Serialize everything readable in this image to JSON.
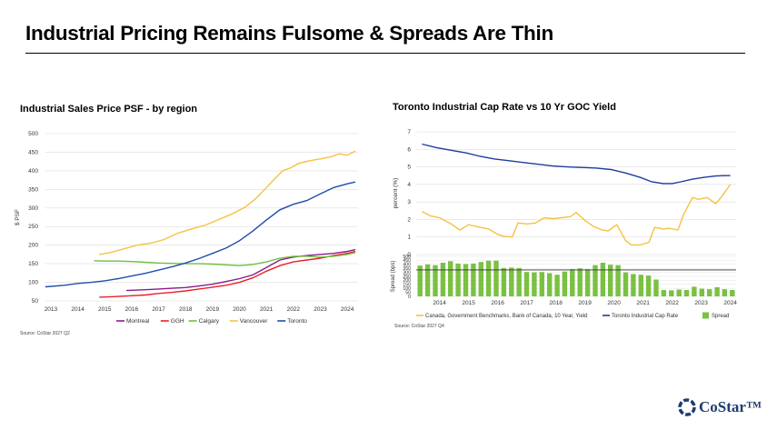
{
  "page": {
    "title": "Industrial Pricing Remains Fulsome & Spreads Are Thin",
    "brand": "CoStar™",
    "colors": {
      "navy": "#1f3c6e",
      "light_blue": "#5b8fd0"
    }
  },
  "chart_data": [
    {
      "type": "line",
      "title": "Industrial Sales Price PSF - by region",
      "ylabel": "$ PSF",
      "xlabel": "",
      "ylim": [
        50,
        500
      ],
      "yticks": [
        50,
        100,
        150,
        200,
        250,
        300,
        350,
        400,
        450,
        500
      ],
      "xlim": [
        2012.8,
        2024.4
      ],
      "xticks": [
        2013,
        2014,
        2015,
        2016,
        2017,
        2018,
        2019,
        2020,
        2021,
        2022,
        2023,
        2024
      ],
      "grid": true,
      "legend": "bottom",
      "source": "Source: CoStar 2027 Q2",
      "series": [
        {
          "name": "Montreal",
          "color": "#8b1a8b",
          "x": [
            2015.8,
            2016.5,
            2017,
            2017.5,
            2018,
            2018.5,
            2019,
            2019.5,
            2020,
            2020.5,
            2021,
            2021.5,
            2022,
            2022.5,
            2023,
            2023.5,
            2024,
            2024.3
          ],
          "values": [
            78,
            80,
            82,
            84,
            86,
            90,
            95,
            102,
            110,
            120,
            140,
            160,
            168,
            172,
            175,
            178,
            183,
            188
          ]
        },
        {
          "name": "GGH",
          "color": "#e8202a",
          "x": [
            2014.8,
            2015.5,
            2016,
            2016.5,
            2017,
            2017.5,
            2018,
            2018.5,
            2019,
            2019.5,
            2020,
            2020.5,
            2021,
            2021.5,
            2022,
            2022.5,
            2023,
            2023.5,
            2024,
            2024.3
          ],
          "values": [
            60,
            62,
            64,
            66,
            70,
            73,
            77,
            82,
            87,
            92,
            100,
            112,
            130,
            145,
            155,
            160,
            165,
            172,
            178,
            183
          ]
        },
        {
          "name": "Calgary",
          "color": "#70c040",
          "x": [
            2014.6,
            2015,
            2015.5,
            2016,
            2016.5,
            2017,
            2017.5,
            2018,
            2018.5,
            2019,
            2019.5,
            2020,
            2020.5,
            2021,
            2021.5,
            2022,
            2022.5,
            2023,
            2023.5,
            2024,
            2024.3
          ],
          "values": [
            158,
            157,
            157,
            156,
            154,
            152,
            151,
            150,
            150,
            149,
            147,
            145,
            148,
            155,
            165,
            170,
            170,
            168,
            170,
            175,
            180
          ]
        },
        {
          "name": "Vancouver",
          "color": "#f5c242",
          "x": [
            2014.8,
            2015.2,
            2015.7,
            2016.2,
            2016.7,
            2017.2,
            2017.7,
            2018.2,
            2018.7,
            2019.2,
            2019.7,
            2020.2,
            2020.6,
            2021,
            2021.3,
            2021.6,
            2021.9,
            2022.2,
            2022.6,
            2023,
            2023.4,
            2023.7,
            2024,
            2024.3
          ],
          "values": [
            175,
            180,
            190,
            200,
            205,
            215,
            232,
            243,
            253,
            268,
            283,
            302,
            325,
            355,
            378,
            400,
            408,
            420,
            427,
            432,
            438,
            446,
            442,
            453
          ]
        },
        {
          "name": "Toronto",
          "color": "#1f4eaa",
          "x": [
            2012.8,
            2013.5,
            2014,
            2014.5,
            2015,
            2015.5,
            2016,
            2016.5,
            2017,
            2017.5,
            2018,
            2018.5,
            2019,
            2019.5,
            2020,
            2020.5,
            2021,
            2021.5,
            2022,
            2022.5,
            2023,
            2023.5,
            2024,
            2024.3
          ],
          "values": [
            88,
            92,
            97,
            100,
            104,
            110,
            117,
            124,
            133,
            142,
            152,
            164,
            178,
            192,
            212,
            238,
            268,
            295,
            310,
            320,
            338,
            355,
            365,
            370
          ]
        }
      ]
    },
    {
      "type": "line",
      "title": "Toronto Industrial Cap Rate vs 10 Yr GOC Yield",
      "ylabel": "percent (%)",
      "ylim": [
        0,
        7
      ],
      "yticks": [
        0,
        1,
        2,
        3,
        4,
        5,
        6,
        7
      ],
      "xlim": [
        2013.5,
        2024.5
      ],
      "grid": true,
      "series": [
        {
          "name": "Canada, Government Benchmarks, Bank of Canada, 10 Year, Yield",
          "color": "#f5c242",
          "x": [
            2013.7,
            2014,
            2014.3,
            2014.7,
            2015,
            2015.3,
            2015.7,
            2016,
            2016.3,
            2016.5,
            2016.8,
            2017,
            2017.3,
            2017.6,
            2017.9,
            2018.2,
            2018.5,
            2018.8,
            2019,
            2019.3,
            2019.6,
            2019.9,
            2020.1,
            2020.4,
            2020.7,
            2020.9,
            2021.2,
            2021.5,
            2021.7,
            2022,
            2022.2,
            2022.5,
            2022.7,
            2023,
            2023.2,
            2023.5,
            2023.8,
            2024,
            2024.3
          ],
          "values": [
            2.45,
            2.2,
            2.1,
            1.75,
            1.4,
            1.7,
            1.55,
            1.45,
            1.15,
            1.05,
            1.0,
            1.8,
            1.75,
            1.8,
            2.1,
            2.05,
            2.1,
            2.15,
            2.4,
            1.95,
            1.6,
            1.4,
            1.35,
            1.7,
            0.8,
            0.55,
            0.55,
            0.7,
            1.55,
            1.45,
            1.5,
            1.4,
            2.3,
            3.25,
            3.15,
            3.25,
            2.9,
            3.3,
            4.0
          ]
        },
        {
          "name": "Toronto Industrial Cap Rate",
          "color": "#1f3c9e",
          "x": [
            2013.7,
            2014.2,
            2014.7,
            2015.2,
            2015.7,
            2016.2,
            2016.7,
            2017.2,
            2017.7,
            2018.2,
            2018.7,
            2019.2,
            2019.7,
            2020.2,
            2020.7,
            2021.2,
            2021.6,
            2022,
            2022.3,
            2022.6,
            2023,
            2023.4,
            2023.8,
            2024.1,
            2024.3
          ],
          "values": [
            6.3,
            6.1,
            5.95,
            5.8,
            5.6,
            5.45,
            5.35,
            5.25,
            5.15,
            5.05,
            5.0,
            4.97,
            4.93,
            4.85,
            4.65,
            4.4,
            4.15,
            4.05,
            4.05,
            4.15,
            4.3,
            4.4,
            4.48,
            4.5,
            4.5
          ]
        }
      ]
    },
    {
      "type": "bar",
      "ylabel": "Spread (bps)",
      "ylim": [
        0,
        500
      ],
      "yticks": [
        0,
        50,
        100,
        150,
        200,
        250,
        300,
        350,
        400,
        450,
        500
      ],
      "xticks": [
        2014,
        2015,
        2016,
        2017,
        2018,
        2019,
        2020,
        2021,
        2022,
        2023,
        2024
      ],
      "average_line": 330,
      "legend": "bottom",
      "source": "Source: CoStar 2027 Q4",
      "series": [
        {
          "name": "Spread",
          "color": "#7ac142",
          "values": [
            385,
            400,
            390,
            420,
            440,
            410,
            405,
            410,
            430,
            445,
            445,
            355,
            360,
            355,
            305,
            300,
            305,
            290,
            270,
            310,
            340,
            350,
            340,
            390,
            420,
            395,
            390,
            300,
            280,
            270,
            260,
            210,
            80,
            75,
            85,
            80,
            120,
            95,
            90,
            115,
            90,
            80
          ]
        }
      ]
    }
  ],
  "legends": {
    "left": [
      "Montreal",
      "GGH",
      "Calgary",
      "Vancouver",
      "Toronto"
    ],
    "right": [
      "Canada, Government Benchmarks, Bank of Canada, 10 Year, Yield",
      "Toronto Industrial Cap Rate",
      "Spread"
    ]
  }
}
